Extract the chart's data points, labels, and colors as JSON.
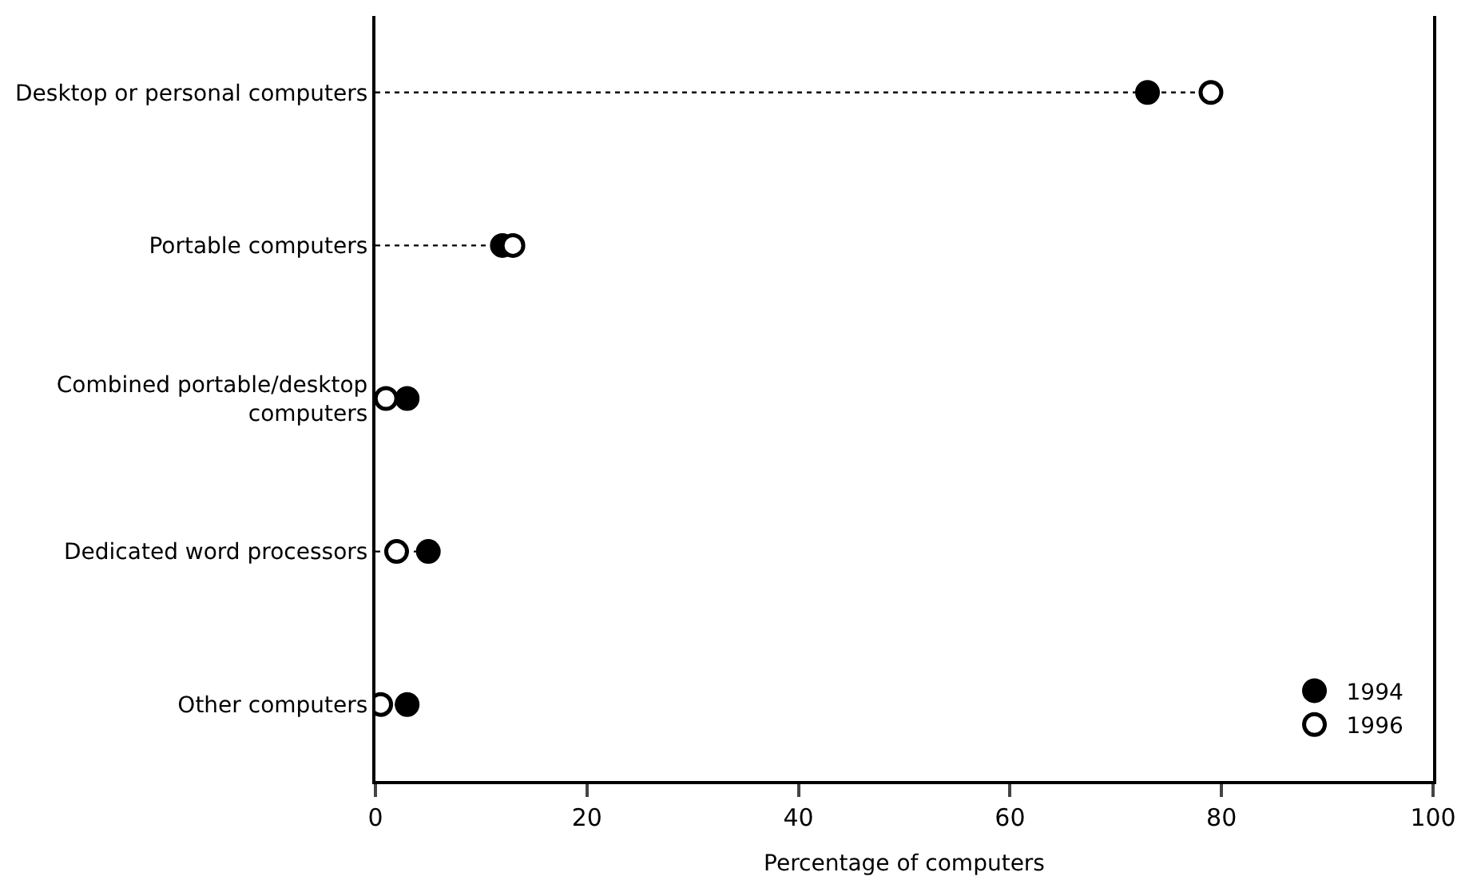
{
  "chart_data": {
    "type": "scatter",
    "orientation": "horizontal",
    "xlabel": "Percentage of computers",
    "categories": [
      "Desktop or personal computers",
      "Portable computers",
      "Combined portable/desktop\ncomputers",
      "Dedicated word processors",
      "Other computers"
    ],
    "series": [
      {
        "name": "1994",
        "color": "#000000",
        "values": [
          73,
          12,
          3,
          5,
          3
        ]
      },
      {
        "name": "1996",
        "color": "#ffffff",
        "values": [
          79,
          13,
          1,
          2,
          0.5
        ]
      }
    ],
    "marker": "circle",
    "line_style": "dotted",
    "xlim": [
      0,
      100
    ],
    "xticks": [
      0,
      20,
      40,
      60,
      80,
      100
    ],
    "legend": "bottom right"
  }
}
